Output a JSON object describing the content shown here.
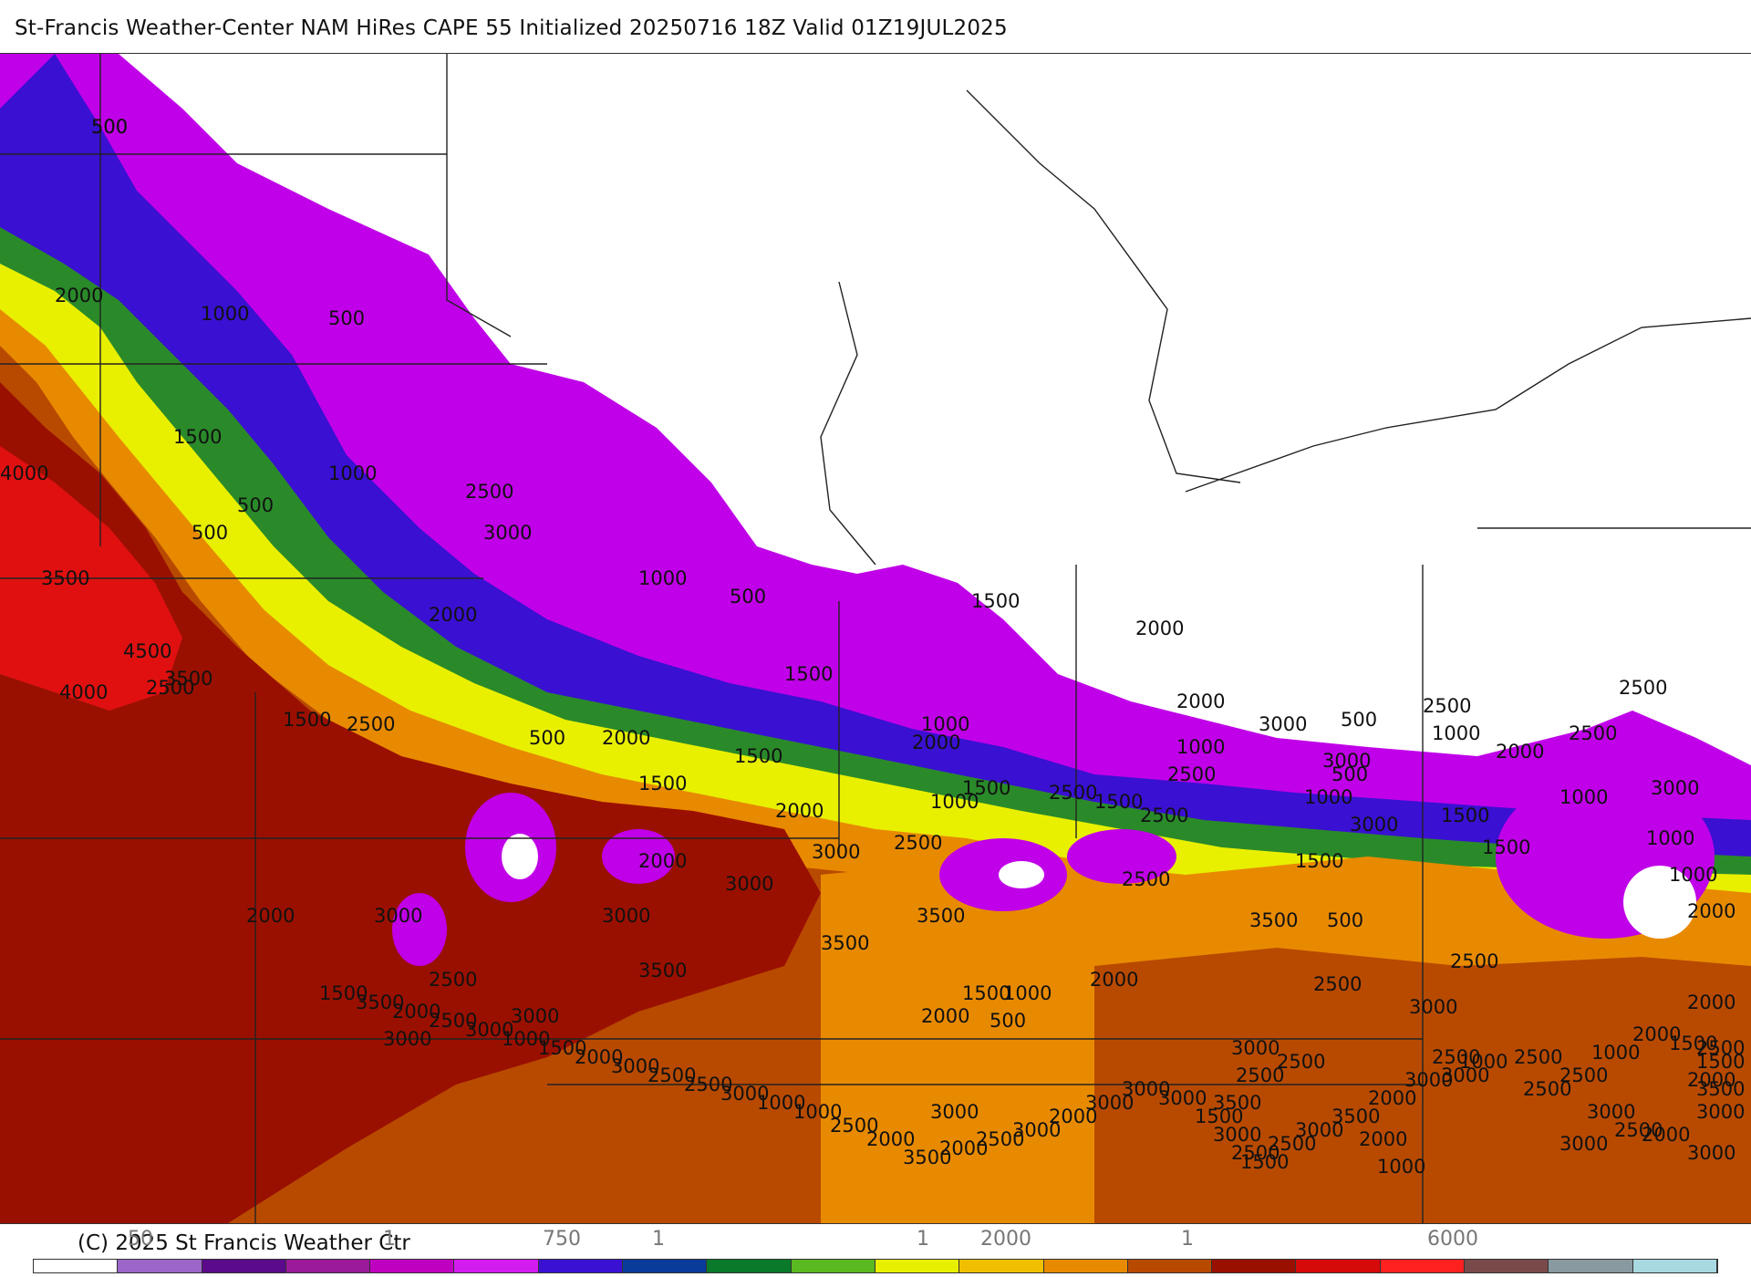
{
  "header": {
    "title": "St-Francis Weather-Center NAM HiRes CAPE  55 Initialized 20250716 18Z Valid 01Z19JUL2025"
  },
  "footer": {
    "copyright": "(C) 2025 St Francis Weather Ctr"
  },
  "colorbar": {
    "colors": [
      "#ffffff",
      "#9b66c8",
      "#5a0a8a",
      "#9a1a9a",
      "#c000c0",
      "#d21cf0",
      "#3a10d2",
      "#0a3a9a",
      "#0a7a2a",
      "#5ab820",
      "#e8f000",
      "#f0c000",
      "#e88a00",
      "#b84a00",
      "#9a1000",
      "#d60a0a",
      "#ff2020",
      "#7a4a4a",
      "#8899a0",
      "#a8d8e0"
    ],
    "ticks": [
      {
        "label": "50"
      },
      {
        "label": "1"
      },
      {
        "label": "750"
      },
      {
        "label": "1"
      },
      {
        "label": "1"
      },
      {
        "label": "2000"
      },
      {
        "label": "1"
      },
      {
        "label": "6000"
      }
    ]
  },
  "map": {
    "contour_labels": [
      "500",
      "2000",
      "1000",
      "500",
      "1500",
      "4000",
      "1000",
      "2500",
      "500",
      "3000",
      "500",
      "3500",
      "1000",
      "500",
      "2000",
      "1500",
      "4500",
      "2000",
      "3500",
      "4000",
      "2500",
      "1500",
      "2500",
      "2000",
      "1500",
      "2500",
      "2000",
      "2500",
      "3000",
      "1000",
      "500",
      "1000",
      "2500",
      "500",
      "1000",
      "2000",
      "1500",
      "3000",
      "1500",
      "2000",
      "2500",
      "2500",
      "500",
      "1000",
      "1500",
      "1000",
      "1500",
      "3000",
      "1500",
      "2000",
      "1000",
      "2500",
      "1000",
      "3000",
      "3000",
      "2500",
      "1500",
      "2000",
      "1500",
      "1000",
      "2500",
      "3000",
      "2000",
      "3500",
      "3500",
      "3000",
      "500",
      "2000",
      "3000",
      "3500",
      "2500",
      "3500",
      "2500",
      "2500",
      "2000",
      "1000",
      "2000",
      "3000",
      "3000",
      "2500",
      "1500",
      "3000",
      "500",
      "2000",
      "3000",
      "2500",
      "3500",
      "3000",
      "3000",
      "2000",
      "3000",
      "1500",
      "2000",
      "3000",
      "2500",
      "3000",
      "1000",
      "3500",
      "1500",
      "2500",
      "2500",
      "3000",
      "2000",
      "3000",
      "1500",
      "2000",
      "2500",
      "1000",
      "2500",
      "1000",
      "2500",
      "3000",
      "2000",
      "3500",
      "3000",
      "2500",
      "2500",
      "1500",
      "3000",
      "3000",
      "3000",
      "2000",
      "3000",
      "2500",
      "2000",
      "3500",
      "2000",
      "2500",
      "1000",
      "1000",
      "3000",
      "2500",
      "2500",
      "3000",
      "2000",
      "1500",
      "1000",
      "3000",
      "2500",
      "2000",
      "3500",
      "1500",
      "500"
    ],
    "legend_colors": {
      "none": "#ffffff",
      "low": "#c000e8",
      "blue": "#3a10d2",
      "green": "#2a8a2a",
      "yellow": "#e8f000",
      "orange": "#e88a00",
      "brown": "#b84a00",
      "darkred": "#9a1000",
      "red": "#e01010"
    }
  }
}
